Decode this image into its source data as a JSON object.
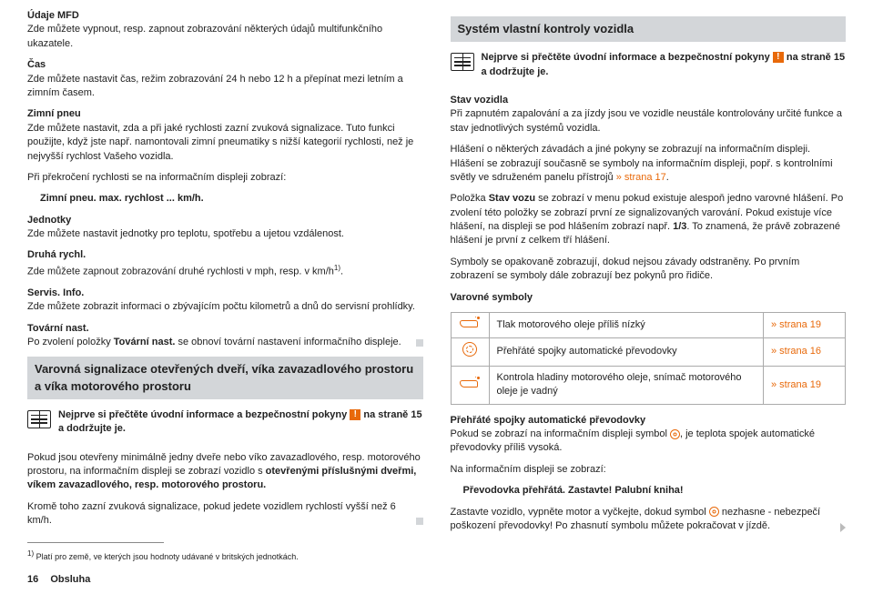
{
  "left": {
    "mfd_h": "Údaje MFD",
    "mfd_p": "Zde můžete vypnout, resp. zapnout zobrazování některých údajů multifunkčního ukazatele.",
    "cas_h": "Čas",
    "cas_p": "Zde můžete nastavit čas, režim zobrazování 24 h nebo 12 h a přepínat mezi letním a zimním časem.",
    "zp_h": "Zimní pneu",
    "zp_p": "Zde můžete nastavit, zda a při jaké rychlosti zazní zvuková signalizace. Tuto funkci použijte, když jste např. namontovali zimní pneumatiky s nižší kategorií rychlosti, než je nejvyšší rychlost Vašeho vozidla.",
    "zp_p2": "Při překročení rychlosti se na informačním displeji zobrazí:",
    "zp_msg": "Zimní pneu. max. rychlost ... km/h.",
    "jed_h": "Jednotky",
    "jed_p": "Zde můžete nastavit jednotky pro teplotu, spotřebu a ujetou vzdálenost.",
    "dr_h": "Druhá rychl.",
    "dr_p1": "Zde můžete zapnout zobrazování druhé rychlosti v mph, resp. v km/h",
    "dr_sup": "1)",
    "dr_dot": ".",
    "si_h": "Servis. Info.",
    "si_p": "Zde můžete zobrazit informaci o zbývajícím počtu kilometrů a dnů do servisní prohlídky.",
    "tn_h": "Tovární nast.",
    "tn_p1": "Po zvolení položky ",
    "tn_b": "Tovární nast.",
    "tn_p2": " se obnoví tovární nastavení informačního displeje.",
    "sect2": "Varovná signalizace otevřených dveří, víka zavazadlového prostoru a víka motorového prostoru",
    "warn_a": "Nejprve si přečtěte úvodní informace a bezpečnostní pokyny ",
    "warn_b": " na straně 15 a dodržujte je.",
    "p3a": "Pokud jsou otevřeny minimálně jedny dveře nebo víko zavazadlového, resp. motorového prostoru, na informačním displeji se zobrazí vozidlo s ",
    "p3b": "otevřenými příslušnými dveřmi, víkem zavazadlového, resp. motorového prostoru.",
    "p4": "Kromě toho zazní zvuková signalizace, pokud jedete vozidlem rychlostí vyšší než 6 km/h.",
    "fn_sup": "1)",
    "fn": " Platí pro země, ve kterých jsou hodnoty udávané v britských jednotkách.",
    "page_no": "16",
    "page_sec": "Obsluha"
  },
  "right": {
    "sect": "Systém vlastní kontroly vozidla",
    "warn_a": "Nejprve si přečtěte úvodní informace a bezpečnostní pokyny ",
    "warn_b": " na straně 15 a dodržujte je.",
    "sv_h": "Stav vozidla",
    "sv_p": "Při zapnutém zapalování a za jízdy jsou ve vozidle neustále kontrolovány určité funkce a stav jednotlivých systémů vozidla.",
    "p2": "Hlášení o některých závadách a jiné pokyny se zobrazují na informačním displeji. Hlášení se zobrazují současně se symboly na informačním displeji, popř. s kontrolními světly ve sdruženém panelu přístrojů",
    "p2_link": " » strana 17",
    "p2_dot": ".",
    "p3a": "Položka ",
    "p3b": "Stav vozu",
    "p3c": " se zobrazí v menu pokud existuje alespoň jedno varovné hlášení. Po zvolení této položky se zobrazí první ze signalizovaných varování. Pokud existuje více hlášení, na displeji se pod hlášením zobrazí např. ",
    "p3d": "1/3",
    "p3e": ". To znamená, že právě zobrazené hlášení je první z celkem tří hlášení.",
    "p4": "Symboly se opakovaně zobrazují, dokud nejsou závady odstraněny. Po prvním zobrazení se symboly dále zobrazují bez pokynů pro řidiče.",
    "vs_h": "Varovné symboly",
    "table": {
      "r1_text": "Tlak motorového oleje příliš nízký",
      "r1_ref": "» strana 19",
      "r2_text": "Přehřáté spojky automatické převodovky",
      "r2_ref": "» strana 16",
      "r3_text": "Kontrola hladiny motorového oleje, snímač motorového oleje je vadný",
      "r3_ref": "» strana 19"
    },
    "ps_h": "Přehřáté spojky automatické převodovky",
    "ps_p1": "Pokud se zobrazí na informačním displeji symbol ",
    "ps_p2": ", je teplota spojek automatické převodovky příliš vysoká.",
    "ps_p3": "Na informačním displeji se zobrazí:",
    "ps_msg": "Převodovka přehřátá. Zastavte! Palubní kniha!",
    "ps_p4a": "Zastavte vozidlo, vypněte motor a vyčkejte, dokud symbol ",
    "ps_p4b": " nezhasne - nebezpečí poškození převodovky! Po zhasnutí symbolu můžete pokračovat v jízdě."
  },
  "warn_icon_label": "!"
}
